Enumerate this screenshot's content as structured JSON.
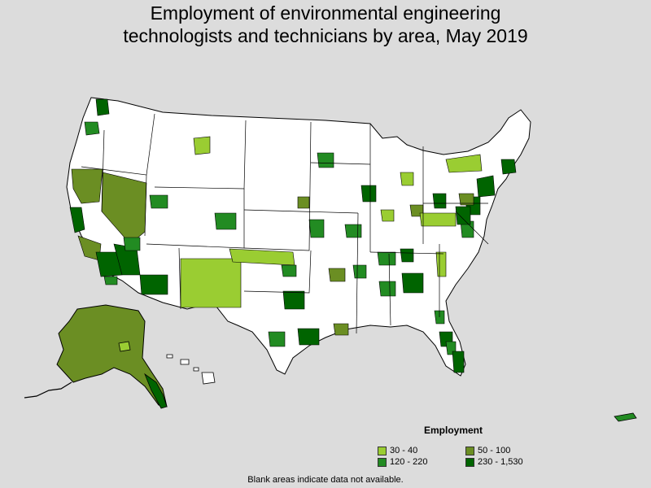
{
  "title": {
    "line1": "Employment of environmental engineering",
    "line2": "technologists and technicians by area, May 2019"
  },
  "legend": {
    "title": "Employment",
    "items": [
      {
        "label": "30 - 40",
        "color": "#9acd32"
      },
      {
        "label": "50 - 100",
        "color": "#6b8e23"
      },
      {
        "label": "120 - 220",
        "color": "#228b22"
      },
      {
        "label": "230 - 1,530",
        "color": "#006400"
      }
    ]
  },
  "footnote": "Blank areas indicate data not available.",
  "colors": {
    "background": "#dcdcdc",
    "no_data": "#ffffff",
    "border": "#000000"
  }
}
